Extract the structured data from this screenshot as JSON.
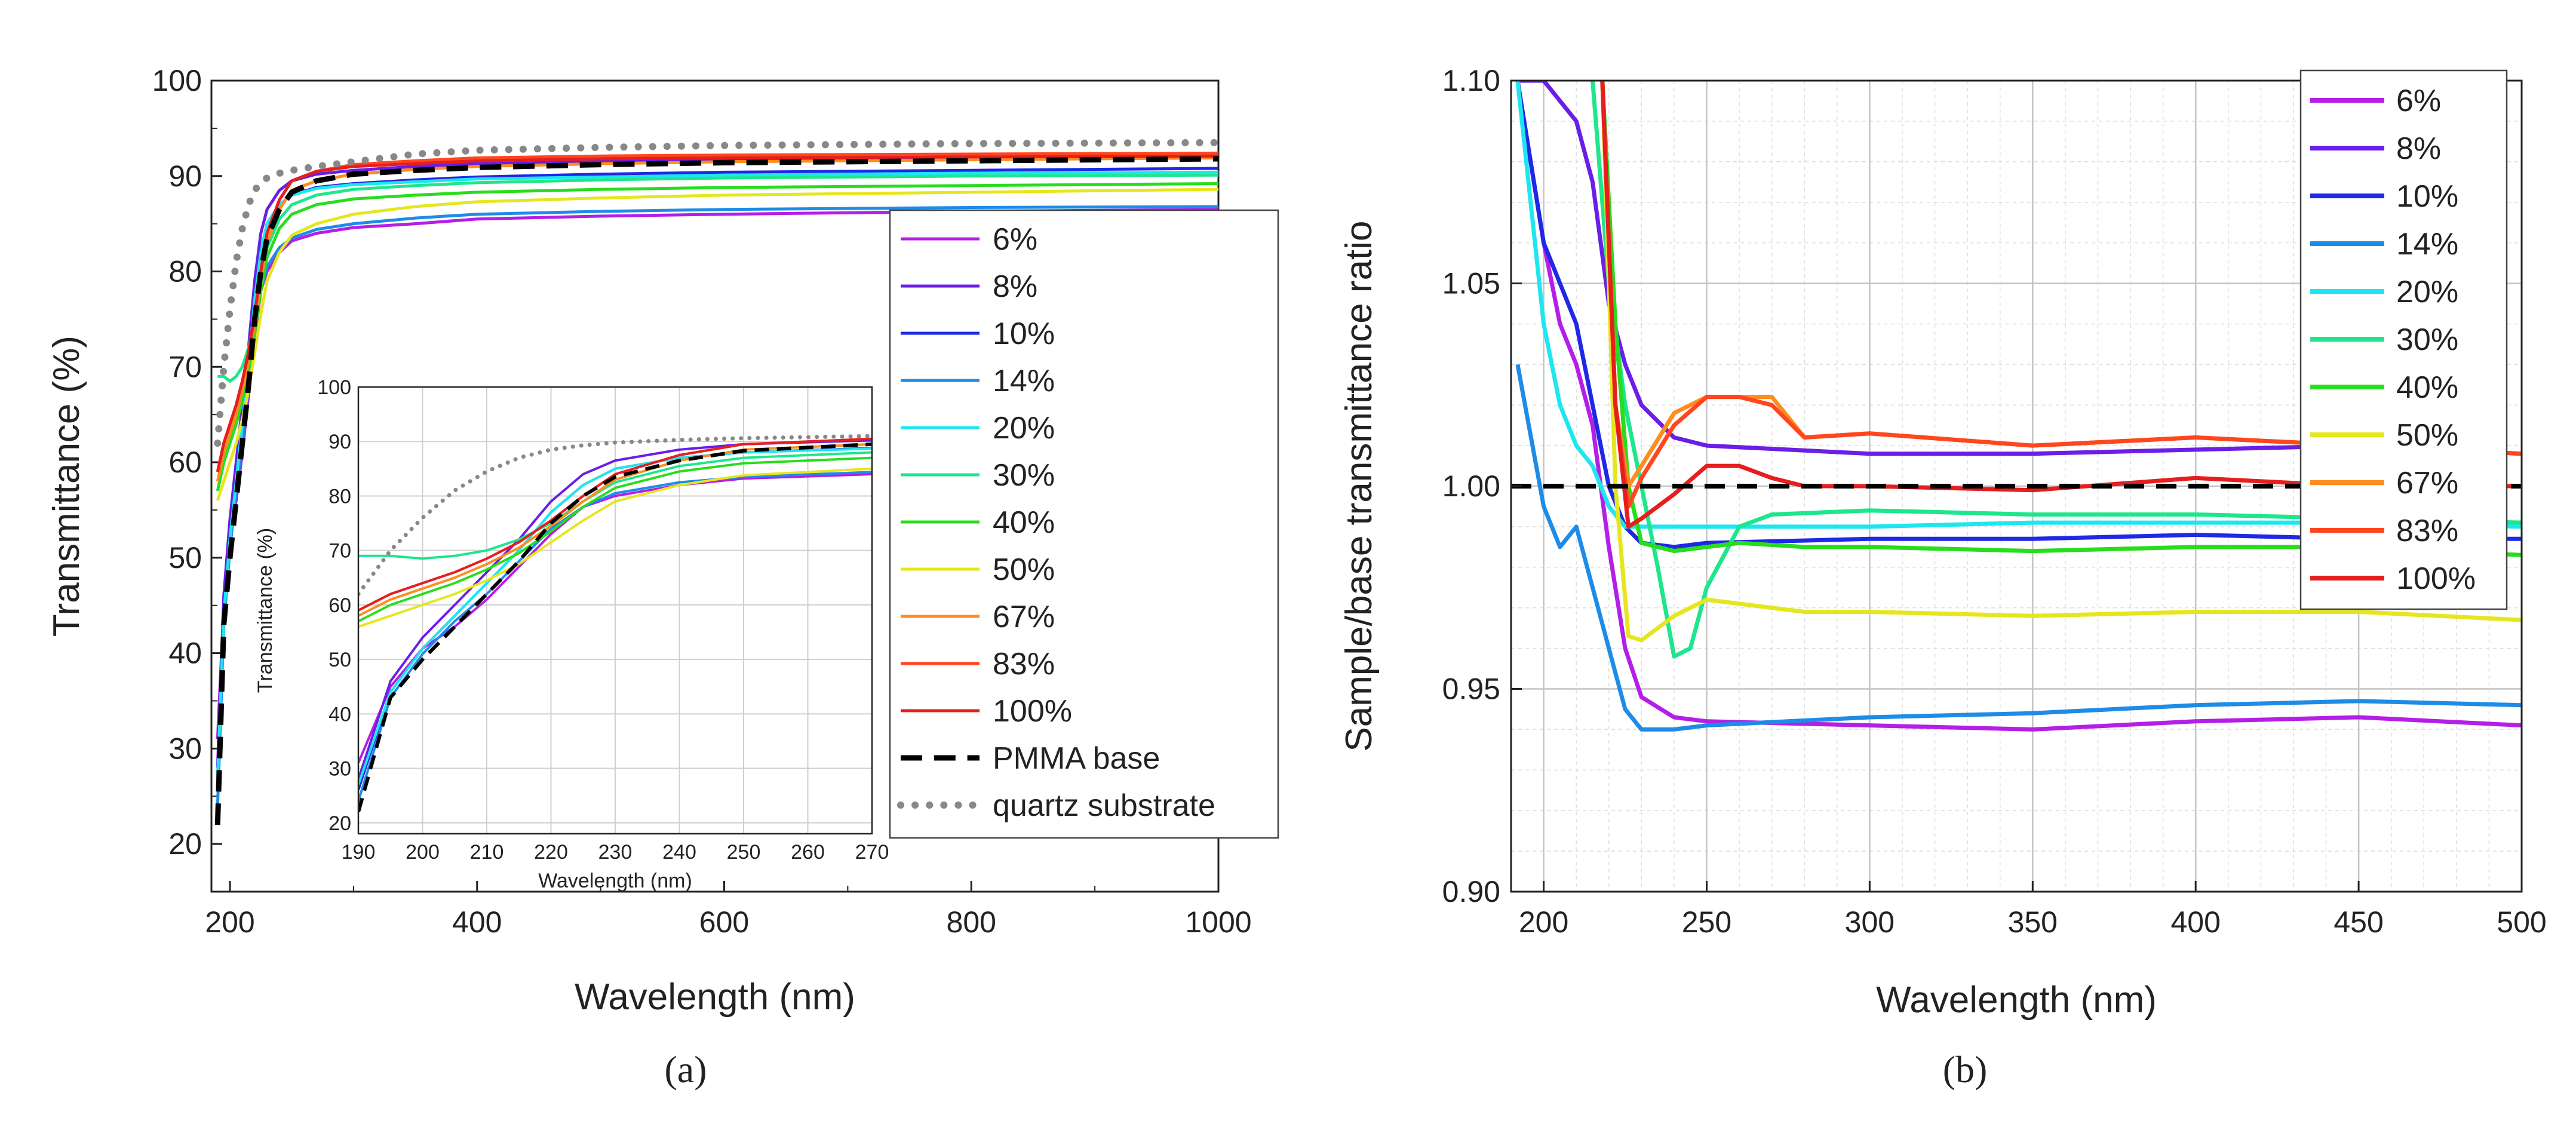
{
  "chart_data": [
    {
      "type": "line",
      "panel_label": "(a)",
      "xlabel": "Wavelength (nm)",
      "ylabel": "Transmittance (%)",
      "xlim": [
        185,
        1000
      ],
      "ylim": [
        15,
        100
      ],
      "xticks": [
        200,
        400,
        600,
        800,
        1000
      ],
      "yticks": [
        20,
        30,
        40,
        50,
        60,
        70,
        80,
        90,
        100
      ],
      "legend_position": "center-right",
      "series": [
        {
          "name": "6%",
          "color": "#b41ee6",
          "style": "solid",
          "x": [
            190,
            195,
            200,
            205,
            210,
            215,
            220,
            225,
            230,
            240,
            250,
            270,
            300,
            350,
            400,
            500,
            600,
            800,
            1000
          ],
          "y": [
            31,
            45,
            52,
            56,
            61,
            67,
            73,
            78,
            80,
            82,
            83.2,
            84.0,
            84.6,
            85.0,
            85.5,
            85.8,
            86.0,
            86.3,
            86.5
          ]
        },
        {
          "name": "8%",
          "color": "#6a1ee6",
          "style": "solid",
          "x": [
            190,
            195,
            200,
            205,
            210,
            215,
            220,
            225,
            230,
            240,
            250,
            270,
            300,
            350,
            400,
            500,
            600,
            800,
            1000
          ],
          "y": [
            28,
            46,
            54,
            60,
            66,
            72,
            79,
            84,
            86.5,
            88.5,
            89.5,
            90.2,
            90.6,
            91.0,
            91.3,
            91.5,
            91.7,
            91.9,
            92.1
          ]
        },
        {
          "name": "10%",
          "color": "#1e28e6",
          "style": "solid",
          "x": [
            190,
            195,
            200,
            205,
            210,
            215,
            220,
            225,
            230,
            240,
            250,
            270,
            300,
            350,
            400,
            500,
            600,
            800,
            1000
          ],
          "y": [
            26,
            44,
            52,
            58,
            64,
            70,
            77,
            82,
            85,
            87,
            88,
            88.8,
            89.2,
            89.6,
            89.9,
            90.2,
            90.4,
            90.6,
            90.8
          ]
        },
        {
          "name": "14%",
          "color": "#1e8ce6",
          "style": "solid",
          "x": [
            190,
            195,
            200,
            205,
            210,
            215,
            220,
            225,
            230,
            240,
            250,
            270,
            300,
            350,
            400,
            500,
            600,
            800,
            1000
          ],
          "y": [
            24,
            43,
            51,
            57,
            62,
            68,
            74,
            78,
            80.5,
            82.5,
            83.5,
            84.4,
            85.0,
            85.6,
            86.0,
            86.3,
            86.5,
            86.7,
            86.8
          ]
        },
        {
          "name": "20%",
          "color": "#1ee6f0",
          "style": "solid",
          "x": [
            190,
            195,
            200,
            205,
            210,
            215,
            220,
            225,
            230,
            240,
            250,
            270,
            300,
            350,
            400,
            500,
            600,
            800,
            1000
          ],
          "y": [
            27,
            44,
            52,
            58,
            64,
            70,
            77,
            82,
            85,
            87,
            88,
            88.7,
            89.1,
            89.4,
            89.7,
            89.9,
            90.1,
            90.3,
            90.4
          ]
        },
        {
          "name": "30%",
          "color": "#1ee68c",
          "style": "solid",
          "x": [
            190,
            195,
            200,
            205,
            210,
            215,
            220,
            225,
            230,
            240,
            250,
            270,
            300,
            350,
            400,
            500,
            600,
            800,
            1000
          ],
          "y": [
            69,
            69,
            68.5,
            69,
            70,
            72,
            75,
            79,
            82.5,
            85.5,
            87,
            88,
            88.6,
            89.0,
            89.3,
            89.6,
            89.8,
            90.0,
            90.1
          ]
        },
        {
          "name": "40%",
          "color": "#28dc1e",
          "style": "solid",
          "x": [
            190,
            195,
            200,
            205,
            210,
            215,
            220,
            225,
            230,
            240,
            250,
            270,
            300,
            350,
            400,
            500,
            600,
            800,
            1000
          ],
          "y": [
            57,
            60,
            62,
            64,
            66.5,
            69.5,
            73.5,
            78,
            81.5,
            84.5,
            86,
            87,
            87.6,
            88.0,
            88.3,
            88.6,
            88.8,
            89.0,
            89.2
          ]
        },
        {
          "name": "50%",
          "color": "#e6e61e",
          "style": "solid",
          "x": [
            190,
            195,
            200,
            205,
            210,
            215,
            220,
            225,
            230,
            240,
            250,
            270,
            300,
            350,
            400,
            500,
            600,
            800,
            1000
          ],
          "y": [
            56,
            58,
            60,
            62,
            64.5,
            67.5,
            71.5,
            75.5,
            79,
            82,
            83.8,
            85,
            86,
            86.8,
            87.3,
            87.7,
            88.0,
            88.3,
            88.6
          ]
        },
        {
          "name": "67%",
          "color": "#ff8c1e",
          "style": "solid",
          "x": [
            190,
            195,
            200,
            205,
            210,
            215,
            220,
            225,
            230,
            240,
            250,
            270,
            300,
            350,
            400,
            500,
            600,
            800,
            1000
          ],
          "y": [
            58,
            61,
            63,
            65,
            67.5,
            70.5,
            74.5,
            79,
            83,
            86.5,
            88.5,
            89.5,
            90.2,
            90.7,
            91.0,
            91.3,
            91.5,
            91.7,
            91.9
          ]
        },
        {
          "name": "83%",
          "color": "#ff461e",
          "style": "solid",
          "x": [
            190,
            195,
            200,
            205,
            210,
            215,
            220,
            225,
            230,
            240,
            250,
            270,
            300,
            350,
            400,
            500,
            600,
            800,
            1000
          ],
          "y": [
            59,
            62,
            64,
            66,
            68.5,
            71.5,
            75.5,
            80,
            84,
            87.5,
            89.5,
            90.5,
            91.2,
            91.6,
            91.9,
            92.1,
            92.2,
            92.3,
            92.4
          ]
        },
        {
          "name": "100%",
          "color": "#e61e1e",
          "style": "solid",
          "x": [
            190,
            195,
            200,
            205,
            210,
            215,
            220,
            225,
            230,
            240,
            250,
            270,
            300,
            350,
            400,
            500,
            600,
            800,
            1000
          ],
          "y": [
            59,
            62,
            64,
            66,
            68.5,
            71.5,
            75.5,
            80,
            84,
            87.5,
            89.5,
            90.5,
            91.0,
            91.3,
            91.6,
            91.8,
            91.9,
            92.0,
            92.1
          ]
        },
        {
          "name": "PMMA base",
          "color": "#000000",
          "style": "dashed",
          "x": [
            190,
            195,
            200,
            205,
            210,
            215,
            220,
            225,
            230,
            240,
            250,
            270,
            300,
            350,
            400,
            500,
            600,
            800,
            1000
          ],
          "y": [
            22,
            43,
            50,
            56,
            62,
            68,
            75,
            80,
            83.5,
            86.5,
            88.3,
            89.5,
            90.2,
            90.6,
            90.9,
            91.2,
            91.4,
            91.6,
            91.8
          ]
        },
        {
          "name": "quartz substrate",
          "color": "#888888",
          "style": "dotted",
          "x": [
            190,
            195,
            200,
            205,
            210,
            215,
            220,
            225,
            230,
            240,
            250,
            270,
            300,
            350,
            400,
            500,
            600,
            800,
            1000
          ],
          "y": [
            62,
            70,
            76,
            81,
            84.5,
            87,
            88.5,
            89.3,
            89.8,
            90.3,
            90.6,
            91.0,
            91.5,
            92.3,
            92.7,
            93.0,
            93.2,
            93.4,
            93.5
          ]
        }
      ],
      "inset": {
        "xlabel": "Wavelength (nm)",
        "ylabel": "Transmittance (%)",
        "xlim": [
          190,
          270
        ],
        "ylim": [
          18,
          100
        ],
        "xticks": [
          190,
          200,
          210,
          220,
          230,
          240,
          250,
          260,
          270
        ],
        "yticks": [
          20,
          30,
          40,
          50,
          60,
          70,
          80,
          90,
          100
        ],
        "grid": true
      }
    },
    {
      "type": "line",
      "panel_label": "(b)",
      "xlabel": "Wavelength (nm)",
      "ylabel": "Sample/base transmittance ratio",
      "xlim": [
        190,
        500
      ],
      "ylim": [
        0.9,
        1.1
      ],
      "xticks": [
        200,
        250,
        300,
        350,
        400,
        450,
        500
      ],
      "yticks": [
        "0.90",
        "0.95",
        "1.00",
        "1.05",
        "1.10"
      ],
      "grid": true,
      "legend_position": "top-right",
      "series": [
        {
          "name": "6%",
          "color": "#b41ee6",
          "style": "solid",
          "x": [
            192,
            200,
            205,
            210,
            215,
            220,
            225,
            230,
            240,
            250,
            300,
            350,
            400,
            450,
            500
          ],
          "y": [
            1.1,
            1.06,
            1.04,
            1.03,
            1.015,
            0.985,
            0.96,
            0.948,
            0.943,
            0.942,
            0.941,
            0.94,
            0.942,
            0.943,
            0.941
          ]
        },
        {
          "name": "8%",
          "color": "#6a1ee6",
          "style": "solid",
          "x": [
            192,
            200,
            205,
            210,
            215,
            220,
            225,
            230,
            240,
            250,
            300,
            350,
            400,
            450,
            500
          ],
          "y": [
            1.1,
            1.1,
            1.095,
            1.09,
            1.075,
            1.045,
            1.03,
            1.02,
            1.012,
            1.01,
            1.008,
            1.008,
            1.009,
            1.01,
            1.008
          ]
        },
        {
          "name": "10%",
          "color": "#1e28e6",
          "style": "solid",
          "x": [
            192,
            200,
            205,
            210,
            215,
            220,
            225,
            230,
            240,
            250,
            300,
            350,
            400,
            450,
            500
          ],
          "y": [
            1.1,
            1.06,
            1.05,
            1.04,
            1.02,
            1.0,
            0.99,
            0.986,
            0.985,
            0.986,
            0.987,
            0.987,
            0.988,
            0.987,
            0.987
          ]
        },
        {
          "name": "14%",
          "color": "#1e8ce6",
          "style": "solid",
          "x": [
            192,
            200,
            205,
            210,
            215,
            220,
            225,
            230,
            240,
            250,
            300,
            350,
            400,
            450,
            500
          ],
          "y": [
            1.03,
            0.995,
            0.985,
            0.99,
            0.975,
            0.96,
            0.945,
            0.94,
            0.94,
            0.941,
            0.943,
            0.944,
            0.946,
            0.947,
            0.946
          ]
        },
        {
          "name": "20%",
          "color": "#1ee6f0",
          "style": "solid",
          "x": [
            192,
            200,
            205,
            210,
            215,
            220,
            225,
            230,
            240,
            250,
            300,
            350,
            400,
            450,
            500
          ],
          "y": [
            1.1,
            1.04,
            1.02,
            1.01,
            1.005,
            0.995,
            0.99,
            0.99,
            0.99,
            0.99,
            0.99,
            0.991,
            0.991,
            0.991,
            0.99
          ]
        },
        {
          "name": "30%",
          "color": "#1ee68c",
          "style": "solid",
          "x": [
            215,
            220,
            225,
            230,
            235,
            240,
            245,
            250,
            260,
            270,
            300,
            350,
            400,
            450,
            500
          ],
          "y": [
            1.1,
            1.05,
            1.02,
            1.0,
            0.98,
            0.958,
            0.96,
            0.975,
            0.99,
            0.993,
            0.994,
            0.993,
            0.993,
            0.992,
            0.991
          ]
        },
        {
          "name": "40%",
          "color": "#28dc1e",
          "style": "solid",
          "x": [
            218,
            222,
            226,
            230,
            240,
            250,
            260,
            280,
            300,
            350,
            400,
            450,
            500
          ],
          "y": [
            1.1,
            1.04,
            1.0,
            0.986,
            0.984,
            0.985,
            0.986,
            0.985,
            0.985,
            0.984,
            0.985,
            0.985,
            0.983
          ]
        },
        {
          "name": "50%",
          "color": "#e6e61e",
          "style": "solid",
          "x": [
            218,
            222,
            226,
            230,
            240,
            250,
            260,
            280,
            300,
            350,
            400,
            450,
            500
          ],
          "y": [
            1.1,
            1.0,
            0.963,
            0.962,
            0.968,
            0.972,
            0.971,
            0.969,
            0.969,
            0.968,
            0.969,
            0.969,
            0.967
          ]
        },
        {
          "name": "67%",
          "color": "#ff8c1e",
          "style": "solid",
          "x": [
            218,
            222,
            226,
            230,
            240,
            250,
            260,
            270,
            280,
            300,
            350,
            400,
            450,
            500
          ],
          "y": [
            1.1,
            1.02,
            1.0,
            1.005,
            1.018,
            1.022,
            1.022,
            1.022,
            1.012,
            1.013,
            1.01,
            1.012,
            1.01,
            1.008
          ]
        },
        {
          "name": "83%",
          "color": "#ff461e",
          "style": "solid",
          "x": [
            218,
            222,
            226,
            230,
            240,
            250,
            260,
            270,
            280,
            300,
            350,
            400,
            450,
            500
          ],
          "y": [
            1.1,
            1.02,
            0.995,
            1.002,
            1.015,
            1.022,
            1.022,
            1.02,
            1.012,
            1.013,
            1.01,
            1.012,
            1.01,
            1.008
          ]
        },
        {
          "name": "100%",
          "color": "#e61e1e",
          "style": "solid",
          "x": [
            218,
            222,
            226,
            230,
            240,
            250,
            260,
            270,
            280,
            300,
            350,
            400,
            450,
            500
          ],
          "y": [
            1.1,
            1.02,
            0.99,
            0.992,
            0.998,
            1.005,
            1.005,
            1.002,
            1.0,
            1.0,
            0.999,
            1.002,
            1.0,
            1.0
          ]
        }
      ],
      "reference_line": {
        "name": "PMMA base",
        "y": 1.0,
        "color": "#000000",
        "style": "dashed"
      }
    }
  ]
}
